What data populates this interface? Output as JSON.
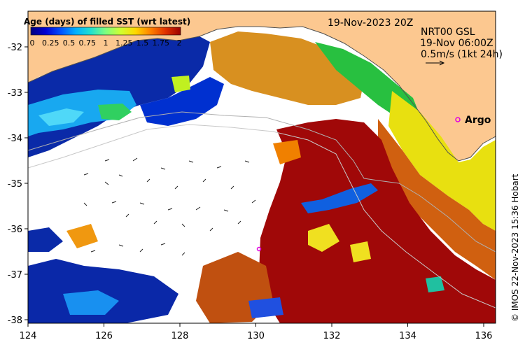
{
  "map": {
    "legend": {
      "title": "Age (days) of filled SST (wrt latest)",
      "ticks": [
        "0",
        "0.25",
        "0.5",
        "0.75",
        "1",
        "1.25",
        "1.5",
        "1.75",
        "2"
      ],
      "colors": [
        "#00007f",
        "#0000d4",
        "#0050ff",
        "#00b0ff",
        "#20e0d0",
        "#7fff7f",
        "#d0ff30",
        "#ffd800",
        "#ff8000",
        "#e03000",
        "#9a0000"
      ]
    },
    "date_label": "19-Nov-2023 20Z",
    "current_label": {
      "line1": "NRT00 GSL",
      "line2": "19-Nov 06:00Z",
      "line3": "0.5m/s (1kt 24h)"
    },
    "argo_label": "Argo",
    "credit": "© IMOS 22-Nov-2023 15:36 Hobart",
    "x_ticks": [
      "124",
      "126",
      "128",
      "130",
      "132",
      "134",
      "136"
    ],
    "y_ticks": [
      "-32",
      "-33",
      "-34",
      "-35",
      "-36",
      "-37",
      "-38"
    ],
    "colors": {
      "land": "#fcc890",
      "nodata": "#ffffff",
      "argo_marker": "#e000e0"
    }
  }
}
